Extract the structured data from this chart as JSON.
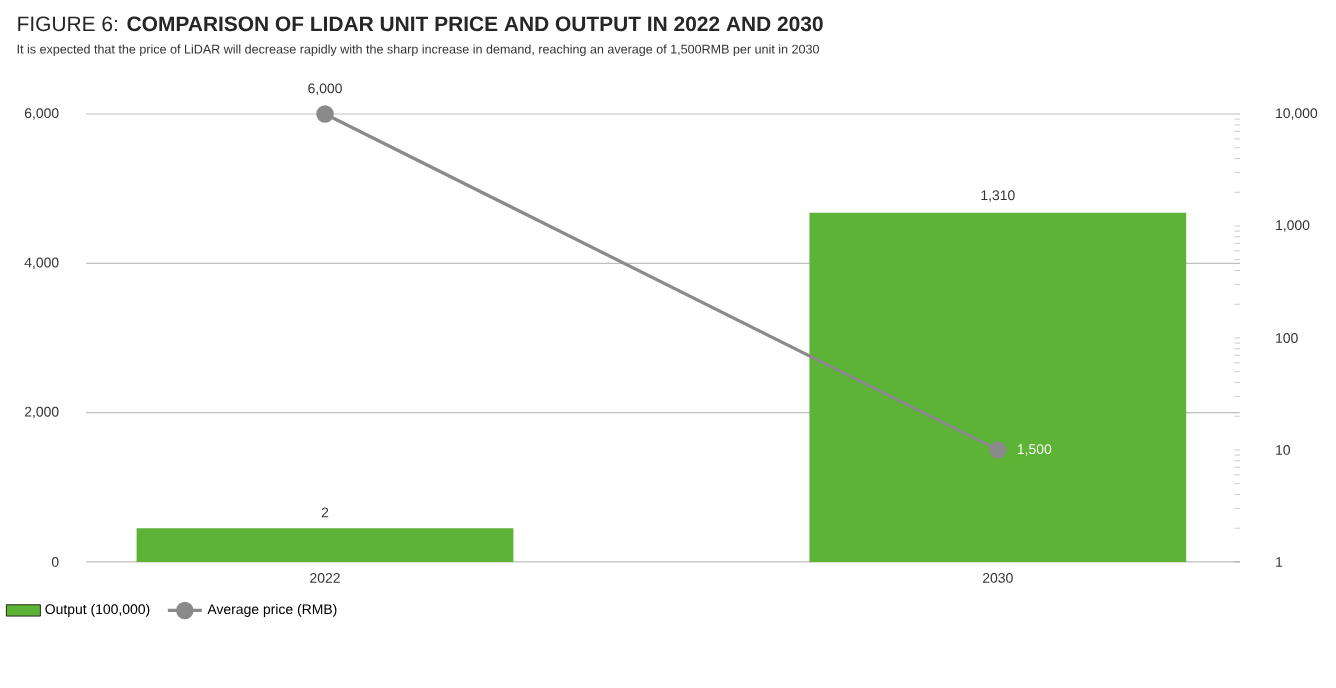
{
  "chart_data": {
    "type": "bar",
    "title": "FIGURE 6: **COMPARISON OF LIDAR UNIT PRICE AND OUTPUT IN 2022 AND 2030**",
    "subtitle": "It is expected that the price of LiDAR will decrease rapidly with the sharp increase in demand, reaching an average of 1,500RMB per unit in 2030",
    "categories": [
      "2022",
      "2030"
    ],
    "series": [
      {
        "name": "Output (100,000)",
        "axis": "y2",
        "color": "#5cb335",
        "values": [
          2,
          1310
        ],
        "value_labels": [
          "2",
          "1,310"
        ]
      },
      {
        "name": "Average price (RMB)",
        "type": "line",
        "color": "#8a8a8a",
        "marker": "circle",
        "line_style": "solid",
        "values": [
          6000,
          1500
        ],
        "value_labels": [
          "6,000",
          "1,500"
        ]
      }
    ],
    "ylim": [
      0,
      6000
    ],
    "yticks": [
      0,
      {
        "value": 2000,
        "label": "2,000"
      },
      {
        "value": 4000,
        "label": "4,000"
      },
      {
        "value": 6000,
        "label": "6,000"
      }
    ],
    "y2lim": [
      1,
      10000
    ],
    "y2ticks": [
      1,
      10,
      100,
      {
        "value": 1000,
        "label": "1,000"
      },
      {
        "value": 10000,
        "label": "10,000"
      }
    ],
    "log": "y2",
    "grid": "y",
    "legend": "bottom left"
  }
}
